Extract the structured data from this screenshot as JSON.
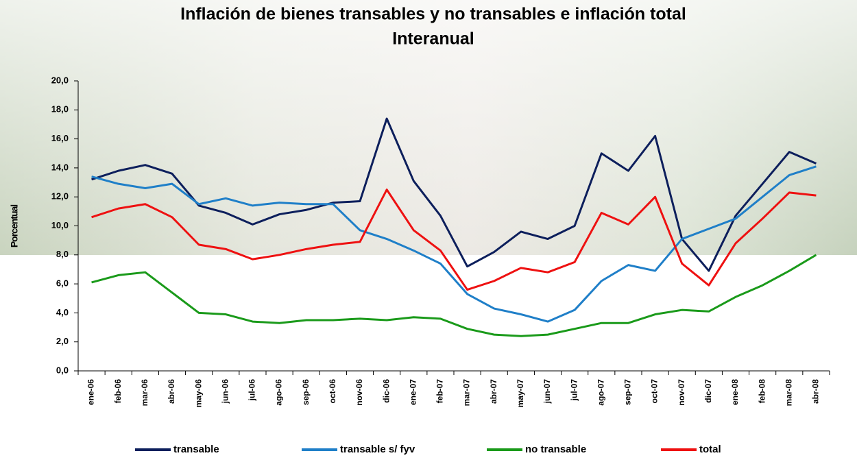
{
  "chart_data": {
    "type": "line",
    "title": "Inflación de bienes transables y no transables e inflación total",
    "subtitle": "Interanual",
    "y_label": "Porcentual",
    "categories": [
      "ene-06",
      "feb-06",
      "mar-06",
      "abr-06",
      "may-06",
      "jun-06",
      "jul-06",
      "ago-06",
      "sep-06",
      "oct-06",
      "nov-06",
      "dic-06",
      "ene-07",
      "feb-07",
      "mar-07",
      "abr-07",
      "may-07",
      "jun-07",
      "jul-07",
      "ago-07",
      "sep-07",
      "oct-07",
      "nov-07",
      "dic-07",
      "ene-08",
      "feb-08",
      "mar-08",
      "abr-08"
    ],
    "series": [
      {
        "name": "transable",
        "color": "#0d1f5c",
        "values": [
          13.2,
          13.8,
          14.2,
          13.6,
          11.4,
          10.9,
          10.1,
          10.8,
          11.1,
          11.6,
          11.7,
          17.4,
          13.1,
          10.7,
          7.2,
          8.2,
          9.6,
          9.1,
          10.0,
          15.0,
          13.8,
          16.2,
          9.1,
          6.9,
          10.7,
          12.9,
          15.1,
          14.3
        ]
      },
      {
        "name": "transable s/ fyv",
        "color": "#1f7fc8",
        "values": [
          13.4,
          12.9,
          12.6,
          12.9,
          11.5,
          11.9,
          11.4,
          11.6,
          11.5,
          11.5,
          9.7,
          9.1,
          8.3,
          7.4,
          5.3,
          4.3,
          3.9,
          3.4,
          4.2,
          6.2,
          7.3,
          6.9,
          9.1,
          9.8,
          10.5,
          12.0,
          13.5,
          14.1
        ]
      },
      {
        "name": "no transable",
        "color": "#1a9a1a",
        "values": [
          6.1,
          6.6,
          6.8,
          5.4,
          4.0,
          3.9,
          3.4,
          3.3,
          3.5,
          3.5,
          3.6,
          3.5,
          3.7,
          3.6,
          2.9,
          2.5,
          2.4,
          2.5,
          2.9,
          3.3,
          3.3,
          3.9,
          4.2,
          4.1,
          5.1,
          5.9,
          6.9,
          8.0
        ]
      },
      {
        "name": "total",
        "color": "#ee1111",
        "values": [
          10.6,
          11.2,
          11.5,
          10.6,
          8.7,
          8.4,
          7.7,
          8.0,
          8.4,
          8.7,
          8.9,
          12.5,
          9.7,
          8.3,
          5.6,
          6.2,
          7.1,
          6.8,
          7.5,
          10.9,
          10.1,
          12.0,
          7.4,
          5.9,
          8.8,
          10.5,
          12.3,
          12.1
        ]
      }
    ],
    "ylim": [
      0,
      20
    ],
    "yticks": [
      {
        "value": 0,
        "label": "0,0"
      },
      {
        "value": 2,
        "label": "2,0"
      },
      {
        "value": 4,
        "label": "4,0"
      },
      {
        "value": 6,
        "label": "6,0"
      },
      {
        "value": 8,
        "label": "8,0"
      },
      {
        "value": 10,
        "label": "10,0"
      },
      {
        "value": 12,
        "label": "12,0"
      },
      {
        "value": 14,
        "label": "14,0"
      },
      {
        "value": 16,
        "label": "16,0"
      },
      {
        "value": 18,
        "label": "18,0"
      },
      {
        "value": 20,
        "label": "20,0"
      }
    ],
    "legend": "bottom"
  }
}
